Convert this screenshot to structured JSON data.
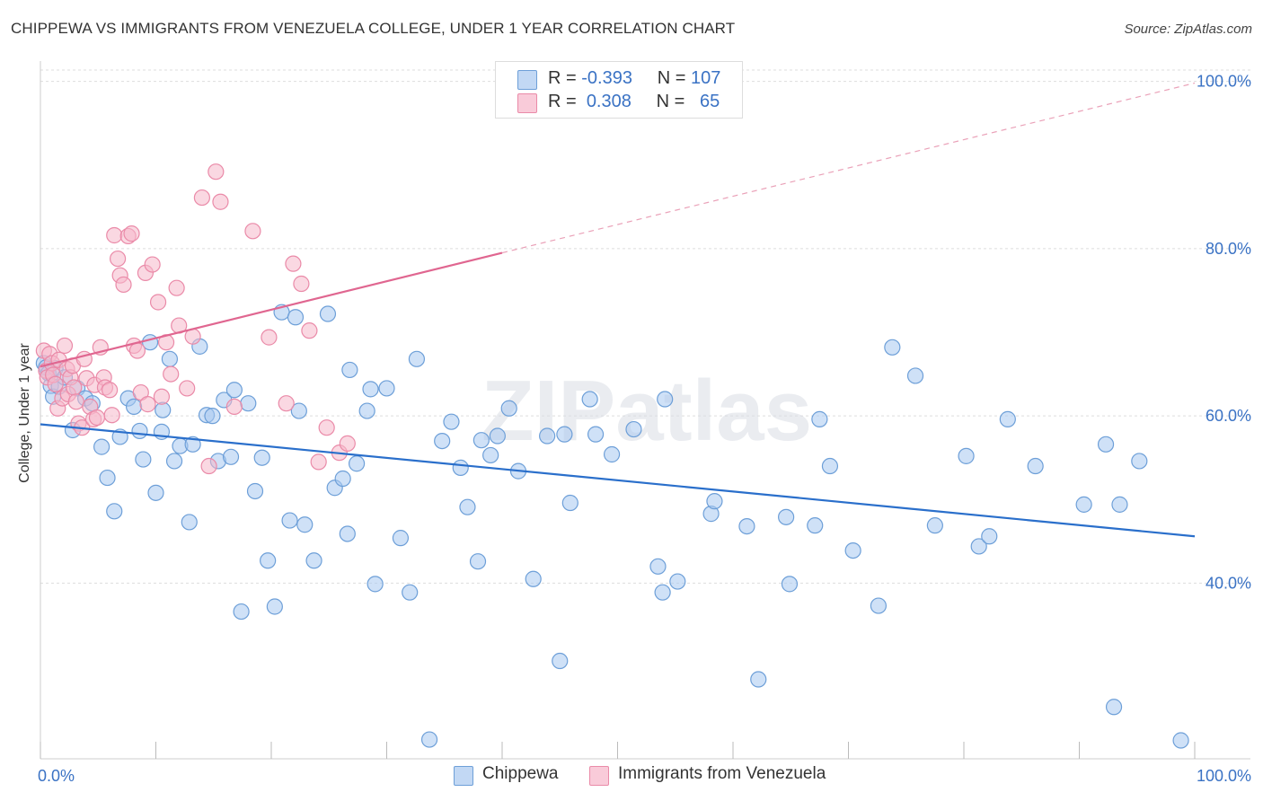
{
  "title": "CHIPPEWA VS IMMIGRANTS FROM VENEZUELA COLLEGE, UNDER 1 YEAR CORRELATION CHART",
  "source": "Source: ZipAtlas.com",
  "watermark": "ZIPatlas",
  "legend_top": {
    "r_label": "R =",
    "n_label": "N =",
    "series": [
      {
        "r": "-0.393",
        "n": "107"
      },
      {
        "r": "0.308",
        "n": "65"
      }
    ]
  },
  "colors": {
    "blue_fill": "#a8c8f0",
    "blue_stroke": "#6d9fd8",
    "blue_line": "#2a6fcb",
    "pink_fill": "#f6b8cb",
    "pink_stroke": "#ea8aa8",
    "pink_line": "#e06690",
    "tick_text": "#3a72c4",
    "grid": "#dddddd"
  },
  "chart_data": {
    "type": "scatter",
    "title": "CHIPPEWA VS IMMIGRANTS FROM VENEZUELA COLLEGE, UNDER 1 YEAR CORRELATION CHART",
    "xlabel": "",
    "ylabel": "College, Under 1 year",
    "xlim": [
      0,
      100
    ],
    "ylim": [
      19,
      102
    ],
    "x_tick_labels": [
      "0.0%",
      "100.0%"
    ],
    "y_ticks": [
      40,
      60,
      80,
      100
    ],
    "y_tick_labels": [
      "40.0%",
      "60.0%",
      "80.0%",
      "100.0%"
    ],
    "grid": true,
    "series": [
      {
        "name": "Chippewa",
        "color": "#a8c8f0",
        "trend": {
          "x": [
            0,
            100
          ],
          "y": [
            59.0,
            45.6
          ],
          "style": "solid"
        },
        "points": [
          [
            0.3,
            66.3
          ],
          [
            0.5,
            65.8
          ],
          [
            0.7,
            65.1
          ],
          [
            0.9,
            63.6
          ],
          [
            1.1,
            62.3
          ],
          [
            1.3,
            65.7
          ],
          [
            1.6,
            63.5
          ],
          [
            2.1,
            64.6
          ],
          [
            2.8,
            58.3
          ],
          [
            3.2,
            63.3
          ],
          [
            3.9,
            62.1
          ],
          [
            4.5,
            61.5
          ],
          [
            5.3,
            56.3
          ],
          [
            5.8,
            52.6
          ],
          [
            6.4,
            48.6
          ],
          [
            6.9,
            57.5
          ],
          [
            7.6,
            62.1
          ],
          [
            8.1,
            61.1
          ],
          [
            8.6,
            58.2
          ],
          [
            8.9,
            54.8
          ],
          [
            9.5,
            68.8
          ],
          [
            10.0,
            50.8
          ],
          [
            10.5,
            58.1
          ],
          [
            10.6,
            60.7
          ],
          [
            11.2,
            66.8
          ],
          [
            11.6,
            54.6
          ],
          [
            12.1,
            56.4
          ],
          [
            12.9,
            47.3
          ],
          [
            13.2,
            56.6
          ],
          [
            13.8,
            68.3
          ],
          [
            14.4,
            60.1
          ],
          [
            14.9,
            60.0
          ],
          [
            15.4,
            54.6
          ],
          [
            15.9,
            61.9
          ],
          [
            16.5,
            55.1
          ],
          [
            16.8,
            63.1
          ],
          [
            17.4,
            36.6
          ],
          [
            18.0,
            61.5
          ],
          [
            18.6,
            51.0
          ],
          [
            19.2,
            55.0
          ],
          [
            19.7,
            42.7
          ],
          [
            20.3,
            37.2
          ],
          [
            20.9,
            72.4
          ],
          [
            21.6,
            47.5
          ],
          [
            22.1,
            71.8
          ],
          [
            22.4,
            60.6
          ],
          [
            22.9,
            47.0
          ],
          [
            23.7,
            42.7
          ],
          [
            24.9,
            72.2
          ],
          [
            25.5,
            51.4
          ],
          [
            26.2,
            52.5
          ],
          [
            26.6,
            45.9
          ],
          [
            26.8,
            65.5
          ],
          [
            27.4,
            54.3
          ],
          [
            28.3,
            60.6
          ],
          [
            28.6,
            63.2
          ],
          [
            29.0,
            39.9
          ],
          [
            30.0,
            63.3
          ],
          [
            31.2,
            45.4
          ],
          [
            32.0,
            38.9
          ],
          [
            32.6,
            66.8
          ],
          [
            33.7,
            21.3
          ],
          [
            34.8,
            57.0
          ],
          [
            35.6,
            59.3
          ],
          [
            36.4,
            53.8
          ],
          [
            37.0,
            49.1
          ],
          [
            37.9,
            42.6
          ],
          [
            38.2,
            57.1
          ],
          [
            39.0,
            55.3
          ],
          [
            39.6,
            57.6
          ],
          [
            40.6,
            60.9
          ],
          [
            41.4,
            53.4
          ],
          [
            42.7,
            40.5
          ],
          [
            43.9,
            57.6
          ],
          [
            45.0,
            30.7
          ],
          [
            45.4,
            57.8
          ],
          [
            45.9,
            49.6
          ],
          [
            47.6,
            62.0
          ],
          [
            48.1,
            57.8
          ],
          [
            49.5,
            55.4
          ],
          [
            51.4,
            58.4
          ],
          [
            53.5,
            42.0
          ],
          [
            53.9,
            38.9
          ],
          [
            54.1,
            62.0
          ],
          [
            55.2,
            40.2
          ],
          [
            58.1,
            48.3
          ],
          [
            58.4,
            49.8
          ],
          [
            61.2,
            46.8
          ],
          [
            62.2,
            28.5
          ],
          [
            64.6,
            47.9
          ],
          [
            64.9,
            39.9
          ],
          [
            67.1,
            46.9
          ],
          [
            67.5,
            59.6
          ],
          [
            68.4,
            54.0
          ],
          [
            70.4,
            43.9
          ],
          [
            72.6,
            37.3
          ],
          [
            73.8,
            68.2
          ],
          [
            75.8,
            64.8
          ],
          [
            77.5,
            46.9
          ],
          [
            80.2,
            55.2
          ],
          [
            81.3,
            44.4
          ],
          [
            82.2,
            45.6
          ],
          [
            83.8,
            59.6
          ],
          [
            86.2,
            54.0
          ],
          [
            90.4,
            49.4
          ],
          [
            92.3,
            56.6
          ],
          [
            93.0,
            25.2
          ],
          [
            93.5,
            49.4
          ],
          [
            95.2,
            54.6
          ],
          [
            98.8,
            21.2
          ]
        ]
      },
      {
        "name": "Immigrants from Venezuela",
        "color": "#f6b8cb",
        "trend": {
          "x": [
            0,
            40
          ],
          "y": [
            65.9,
            79.5
          ],
          "style": "solid",
          "extension": {
            "x": [
              40,
              100
            ],
            "y": [
              79.5,
              99.8
            ],
            "style": "dashed"
          }
        },
        "points": [
          [
            0.3,
            67.8
          ],
          [
            0.5,
            65.4
          ],
          [
            0.6,
            64.6
          ],
          [
            0.8,
            67.4
          ],
          [
            1.0,
            66.3
          ],
          [
            1.1,
            64.9
          ],
          [
            1.3,
            63.8
          ],
          [
            1.5,
            60.9
          ],
          [
            1.6,
            66.7
          ],
          [
            1.9,
            62.1
          ],
          [
            2.1,
            68.4
          ],
          [
            2.3,
            65.6
          ],
          [
            2.4,
            62.6
          ],
          [
            2.6,
            64.6
          ],
          [
            2.8,
            66.0
          ],
          [
            2.9,
            63.4
          ],
          [
            3.1,
            61.7
          ],
          [
            3.3,
            59.1
          ],
          [
            3.6,
            58.6
          ],
          [
            3.8,
            66.8
          ],
          [
            4.0,
            64.5
          ],
          [
            4.3,
            61.1
          ],
          [
            4.6,
            59.6
          ],
          [
            4.7,
            63.7
          ],
          [
            4.9,
            59.8
          ],
          [
            5.2,
            68.2
          ],
          [
            5.5,
            64.6
          ],
          [
            5.6,
            63.4
          ],
          [
            6.0,
            63.1
          ],
          [
            6.2,
            60.1
          ],
          [
            6.4,
            81.6
          ],
          [
            6.7,
            78.8
          ],
          [
            6.9,
            76.8
          ],
          [
            7.2,
            75.7
          ],
          [
            7.6,
            81.5
          ],
          [
            7.9,
            81.8
          ],
          [
            8.1,
            68.4
          ],
          [
            8.4,
            67.8
          ],
          [
            8.7,
            62.8
          ],
          [
            9.1,
            77.1
          ],
          [
            9.3,
            61.4
          ],
          [
            9.7,
            78.1
          ],
          [
            10.2,
            73.6
          ],
          [
            10.5,
            62.3
          ],
          [
            10.9,
            68.8
          ],
          [
            11.3,
            65.0
          ],
          [
            11.8,
            75.3
          ],
          [
            12.0,
            70.8
          ],
          [
            12.7,
            63.3
          ],
          [
            13.2,
            69.5
          ],
          [
            14.0,
            86.1
          ],
          [
            14.6,
            54.0
          ],
          [
            15.2,
            89.2
          ],
          [
            15.6,
            85.6
          ],
          [
            16.8,
            61.1
          ],
          [
            18.4,
            82.1
          ],
          [
            19.8,
            69.4
          ],
          [
            21.3,
            61.5
          ],
          [
            21.9,
            78.2
          ],
          [
            22.6,
            75.8
          ],
          [
            23.3,
            70.2
          ],
          [
            24.1,
            54.5
          ],
          [
            24.8,
            58.6
          ],
          [
            25.9,
            55.6
          ],
          [
            26.6,
            56.7
          ]
        ]
      }
    ]
  },
  "legend_bottom": [
    "Chippewa",
    "Immigrants from Venezuela"
  ]
}
